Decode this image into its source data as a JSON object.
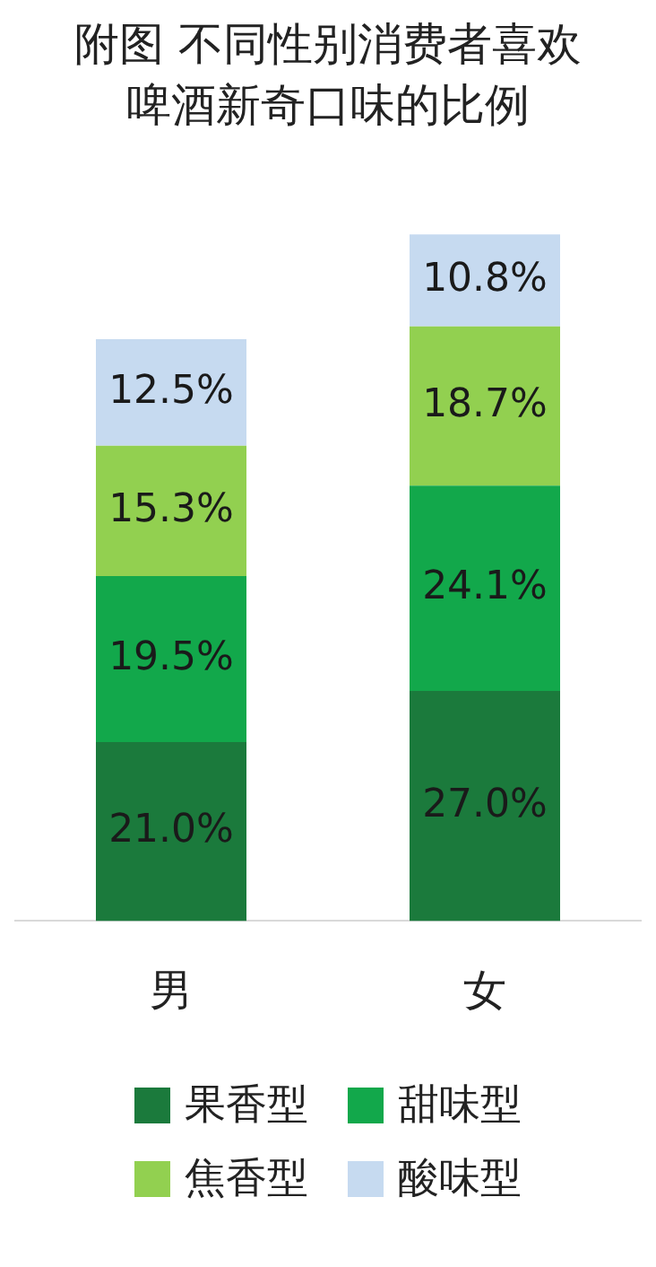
{
  "chart_data": {
    "type": "bar",
    "title": "附图 不同性别消费者喜欢啤酒新奇口味的比例",
    "categories": [
      "男",
      "女"
    ],
    "stacked": true,
    "legend": "bottom",
    "series": [
      {
        "name": "果香型",
        "color": "#1b7a3c",
        "values": [
          21.0,
          27.0
        ],
        "value_labels": [
          "21.0%",
          "27.0%"
        ]
      },
      {
        "name": "甜味型",
        "color": "#12a84b",
        "values": [
          19.5,
          24.1
        ],
        "value_labels": [
          "19.5%",
          "24.1%"
        ]
      },
      {
        "name": "焦香型",
        "color": "#92d050",
        "values": [
          15.3,
          18.7
        ],
        "value_labels": [
          "15.3%",
          "18.7%"
        ]
      },
      {
        "name": "酸味型",
        "color": "#c6daf0",
        "values": [
          12.5,
          10.8
        ],
        "value_labels": [
          "12.5%",
          "10.8%"
        ]
      }
    ]
  }
}
